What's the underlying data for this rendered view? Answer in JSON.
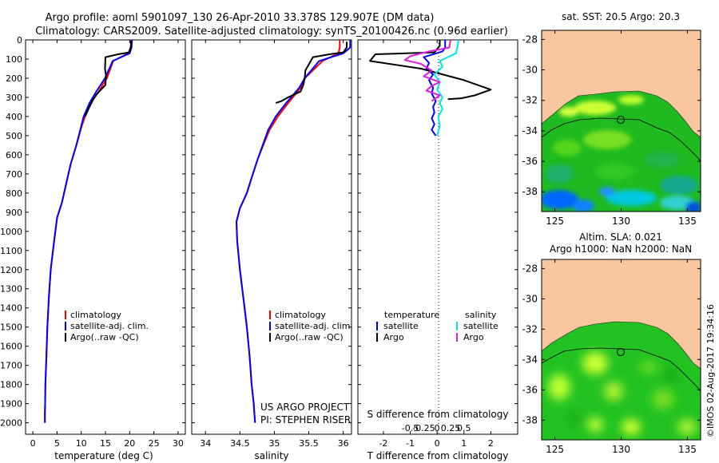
{
  "title": {
    "line1": "Argo profile: aoml 5901097_130 26-Apr-2010 33.378S 129.907E (DM data)",
    "line2": "Climatology: CARS2009. Satellite-adjusted climatology: synTS_20100426.nc (0.96d earlier)"
  },
  "footer": {
    "credit": "©IMOS 02-Aug-2017 19:34:16"
  },
  "colors": {
    "climatology": "#ff0000",
    "satellite": "#0000ff",
    "argo": "#000000",
    "sat_salinity": "#00e5ee",
    "argo_salinity": "#e020e0",
    "land": "#f9c79f",
    "contour": "#000000"
  },
  "chart_data": [
    {
      "type": "line",
      "id": "temperature",
      "xlabel": "temperature (deg C)",
      "ylabel": "",
      "xlim": [
        -1.5,
        31.5
      ],
      "ylim": [
        0,
        2060
      ],
      "y_reversed": true,
      "xticks": [
        0,
        5,
        10,
        15,
        20,
        25,
        30
      ],
      "yticks": [
        0,
        100,
        200,
        300,
        400,
        500,
        600,
        700,
        800,
        900,
        1000,
        1100,
        1200,
        1300,
        1400,
        1500,
        1600,
        1700,
        1800,
        1900,
        2000
      ],
      "legend": [
        "climatology",
        "satellite-adj. clim.",
        "Argo(..raw -QC)"
      ],
      "series": [
        {
          "name": "climatology",
          "color": "#ff0000",
          "x": [
            20.3,
            20.2,
            19.7,
            16.6,
            15.3,
            13.6,
            12.0,
            10.8,
            10.1,
            9.0,
            7.8,
            6.9,
            6.0,
            5.0,
            4.4,
            3.7,
            3.3,
            3.0,
            2.8,
            2.6,
            2.55,
            2.5,
            2.5
          ],
          "y": [
            0,
            40,
            70,
            110,
            200,
            270,
            330,
            400,
            450,
            550,
            650,
            750,
            850,
            930,
            1050,
            1200,
            1350,
            1500,
            1650,
            1800,
            1900,
            1950,
            2000
          ]
        },
        {
          "name": "satellite-adj. clim.",
          "color": "#0000ff",
          "x": [
            20.5,
            20.4,
            20.0,
            16.5,
            14.9,
            13.1,
            11.7,
            10.5,
            10.0,
            9.0,
            7.8,
            6.9,
            6.0,
            5.0,
            4.4,
            3.7,
            3.3,
            3.0,
            2.8,
            2.6,
            2.55,
            2.5,
            2.5
          ],
          "y": [
            0,
            40,
            70,
            110,
            200,
            270,
            330,
            400,
            450,
            550,
            650,
            750,
            850,
            930,
            1050,
            1200,
            1350,
            1500,
            1650,
            1800,
            1900,
            1950,
            2000
          ]
        },
        {
          "name": "Argo(..raw -QC)",
          "color": "#000000",
          "x": [
            20.3,
            20.3,
            19.9,
            17.6,
            15.0,
            14.9,
            15.1,
            15.0,
            13.9,
            13.0,
            12.5,
            11.5,
            10.8
          ],
          "y": [
            5,
            30,
            65,
            75,
            90,
            150,
            185,
            235,
            265,
            290,
            310,
            360,
            400
          ]
        }
      ]
    },
    {
      "type": "line",
      "id": "salinity",
      "xlabel": "salinity",
      "ylabel": "",
      "xlim": [
        33.8,
        36.12
      ],
      "ylim": [
        0,
        2060
      ],
      "y_reversed": true,
      "xticks": [
        34,
        34.5,
        35,
        35.5,
        36
      ],
      "legend": [
        "climatology",
        "satellite-adj. clim.",
        "Argo(..raw -QC)"
      ],
      "annotation": [
        "US ARGO PROJECT",
        "PI: STEPHEN RISER"
      ],
      "series": [
        {
          "name": "climatology",
          "color": "#ff0000",
          "x": [
            35.95,
            35.95,
            35.93,
            35.7,
            35.44,
            35.38,
            35.2,
            35.05,
            34.93,
            34.85,
            34.76,
            34.67,
            34.6,
            34.5,
            34.45,
            34.46,
            34.5,
            34.55,
            34.6,
            34.64,
            34.67,
            34.7,
            34.71,
            34.72
          ],
          "y": [
            0,
            40,
            70,
            110,
            200,
            250,
            330,
            400,
            470,
            540,
            620,
            720,
            800,
            880,
            950,
            1050,
            1200,
            1350,
            1500,
            1650,
            1800,
            1900,
            1950,
            2000
          ]
        },
        {
          "name": "satellite-adj. clim.",
          "color": "#0000ff",
          "x": [
            36.1,
            36.1,
            36.0,
            35.65,
            35.44,
            35.36,
            35.17,
            35.02,
            34.91,
            34.84,
            34.76,
            34.67,
            34.6,
            34.5,
            34.45,
            34.46,
            34.5,
            34.55,
            34.6,
            34.64,
            34.67,
            34.7,
            34.71,
            34.72
          ],
          "y": [
            0,
            40,
            70,
            110,
            200,
            250,
            330,
            400,
            470,
            540,
            620,
            720,
            800,
            880,
            950,
            1050,
            1200,
            1350,
            1500,
            1650,
            1800,
            1900,
            1950,
            2000
          ]
        },
        {
          "name": "Argo(..raw -QC)",
          "color": "#000000",
          "x": [
            36.05,
            36.05,
            36.0,
            35.8,
            35.56,
            35.45,
            35.44,
            35.42,
            35.38,
            35.2,
            35.1,
            35.02
          ],
          "y": [
            10,
            40,
            65,
            75,
            90,
            160,
            200,
            235,
            270,
            300,
            320,
            330
          ]
        }
      ]
    },
    {
      "type": "line",
      "id": "difference",
      "xlabel": "T difference from climatology",
      "xlabel_top": "S difference from climatology",
      "ylabel": "",
      "xlim": [
        -2.95,
        3.0
      ],
      "ylim": [
        0,
        2060
      ],
      "y_reversed": true,
      "xticks": [
        -2,
        -1,
        0,
        1,
        2
      ],
      "sticks_pos": [
        -1.0,
        -0.5,
        0,
        0.5,
        1.0
      ],
      "sticks": [
        "-0.5",
        "-0.25",
        "0",
        "0.25",
        "0.5"
      ],
      "legend_headers": [
        "temperature",
        "salinity"
      ],
      "legend": [
        "satellite",
        "Argo",
        "satellite",
        "Argo"
      ],
      "series": [
        {
          "name": "satellite",
          "color": "#0000ff",
          "x": [
            0.3,
            0.3,
            0.2,
            -0.5,
            -0.3,
            -0.4,
            -0.15,
            -0.3,
            -0.15,
            -0.2,
            -0.05,
            -0.15,
            -0.1,
            -0.2,
            -0.1,
            -0.2,
            -0.05
          ],
          "y": [
            0,
            40,
            60,
            90,
            120,
            150,
            180,
            210,
            250,
            280,
            320,
            350,
            380,
            410,
            440,
            470,
            500
          ]
        },
        {
          "name": "Argo",
          "color": "#000000",
          "x": [
            0.1,
            0.1,
            -0.1,
            -2.3,
            -2.5,
            -0.6,
            1.0,
            2.0,
            1.4,
            0.9,
            0.4
          ],
          "y": [
            0,
            30,
            65,
            75,
            110,
            150,
            210,
            260,
            290,
            305,
            310
          ]
        },
        {
          "name": "satellite",
          "color": "#00e5ee",
          "x": [
            0.8,
            0.75,
            0.7,
            0.1,
            0.2,
            -0.1,
            0.1,
            0.0,
            0.2,
            0.1,
            0.2,
            0.05,
            0.1,
            0.0
          ],
          "y": [
            0,
            40,
            70,
            110,
            140,
            180,
            220,
            260,
            300,
            330,
            360,
            400,
            450,
            500
          ]
        },
        {
          "name": "Argo",
          "color": "#e020e0",
          "x": [
            0.5,
            0.45,
            -0.3,
            -1.0,
            -1.2,
            -0.6,
            -0.2,
            -0.5,
            0.1,
            -0.2,
            -0.4,
            0.1,
            -0.2
          ],
          "y": [
            0,
            40,
            60,
            85,
            105,
            125,
            160,
            190,
            220,
            240,
            265,
            290,
            320
          ]
        }
      ]
    },
    {
      "type": "heatmap",
      "id": "sst_map",
      "title": "sat. SST: 20.5 Argo: 20.3",
      "xlim": [
        124,
        136
      ],
      "ylim": [
        -39.3,
        -27.4
      ],
      "xticks": [
        125,
        130,
        135
      ],
      "yticks": [
        -28,
        -30,
        -32,
        -34,
        -36,
        -38
      ],
      "marker": {
        "x": 129.907,
        "y": -33.378
      }
    },
    {
      "type": "heatmap",
      "id": "sla_map",
      "title": [
        "Altim. SLA: 0.021",
        "Argo h1000: NaN h2000: NaN"
      ],
      "xlim": [
        124,
        136
      ],
      "ylim": [
        -39.3,
        -27.4
      ],
      "xticks": [
        125,
        130,
        135
      ],
      "yticks": [
        -28,
        -30,
        -32,
        -34,
        -36,
        -38
      ],
      "marker": {
        "x": 129.907,
        "y": -33.378
      }
    }
  ]
}
